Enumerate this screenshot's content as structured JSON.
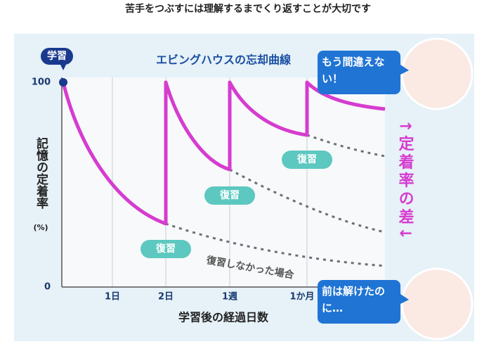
{
  "header": {
    "title": "苦手をつぶすには理解するまでくり返すことが大切です"
  },
  "graph": {
    "title": "エビングハウスの忘却曲線",
    "start_tag": "学習",
    "y_axis": {
      "label": "記憶の定着率",
      "unit": "(%)",
      "ticks": [
        100,
        0
      ]
    },
    "x_axis": {
      "label": "学習後の経過日数",
      "ticks": [
        "1日",
        "2日",
        "1週",
        "1か月"
      ]
    },
    "review_labels": [
      "復習",
      "復習",
      "復習"
    ],
    "no_review_label": "復習しなかった場合",
    "difference_label": "↑定着率の差↓"
  },
  "bubbles": [
    {
      "text": "もう間違えない！"
    },
    {
      "text": "前は解けたのに…"
    }
  ]
}
